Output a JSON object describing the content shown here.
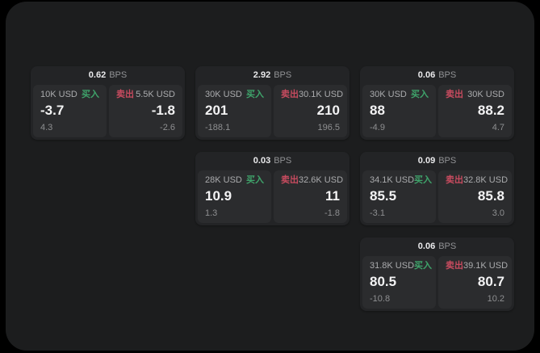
{
  "app": {
    "background_color": "#000000",
    "panel_color": "#1c1d1e",
    "card_color": "#232426",
    "tile_color": "#2b2c2e",
    "accent_green": "#3fa46b",
    "accent_red": "#c74b5f",
    "bps_unit": "BPS",
    "buy_label": "买入",
    "sell_label": "卖出"
  },
  "cards": [
    {
      "bps": "0.62",
      "col": 0,
      "row": 0,
      "buy": {
        "amount": "10K USD",
        "price": "-3.7",
        "delta": "4.3"
      },
      "sell": {
        "amount": "5.5K USD",
        "price": "-1.8",
        "delta": "-2.6"
      }
    },
    {
      "bps": "2.92",
      "col": 1,
      "row": 0,
      "buy": {
        "amount": "30K USD",
        "price": "201",
        "delta": "-188.1"
      },
      "sell": {
        "amount": "30.1K USD",
        "price": "210",
        "delta": "196.5"
      }
    },
    {
      "bps": "0.06",
      "col": 2,
      "row": 0,
      "buy": {
        "amount": "30K USD",
        "price": "88",
        "delta": "-4.9"
      },
      "sell": {
        "amount": "30K USD",
        "price": "88.2",
        "delta": "4.7"
      }
    },
    {
      "bps": "0.03",
      "col": 1,
      "row": 1,
      "buy": {
        "amount": "28K USD",
        "price": "10.9",
        "delta": "1.3"
      },
      "sell": {
        "amount": "32.6K USD",
        "price": "11",
        "delta": "-1.8"
      }
    },
    {
      "bps": "0.09",
      "col": 2,
      "row": 1,
      "buy": {
        "amount": "34.1K USD",
        "price": "85.5",
        "delta": "-3.1"
      },
      "sell": {
        "amount": "32.8K USD",
        "price": "85.8",
        "delta": "3.0"
      }
    },
    {
      "bps": "0.06",
      "col": 2,
      "row": 2,
      "buy": {
        "amount": "31.8K USD",
        "price": "80.5",
        "delta": "-10.8"
      },
      "sell": {
        "amount": "39.1K USD",
        "price": "80.7",
        "delta": "10.2"
      }
    }
  ]
}
